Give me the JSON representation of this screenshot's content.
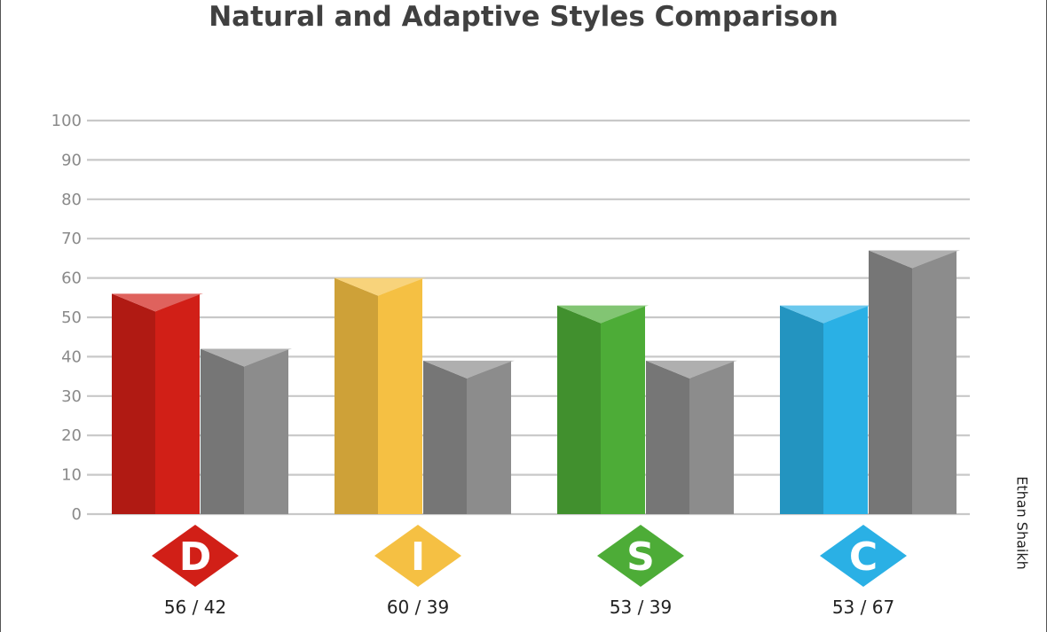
{
  "chart_data": {
    "type": "bar",
    "title": "Natural and Adaptive Styles Comparison",
    "categories": [
      "D",
      "I",
      "S",
      "C"
    ],
    "series": [
      {
        "values": [
          56,
          60,
          53,
          53
        ]
      },
      {
        "values": [
          42,
          39,
          39,
          67
        ]
      }
    ],
    "value_labels": [
      "56 / 42",
      "60 / 39",
      "53 / 39",
      "53 / 67"
    ],
    "ylim": [
      0,
      100
    ],
    "yticks": [
      0,
      10,
      20,
      30,
      40,
      50,
      60,
      70,
      80,
      90,
      100
    ],
    "grid": true,
    "colors": {
      "D": "#d11f17",
      "I": "#f5c043",
      "S": "#4dac37",
      "C": "#2ab0e5",
      "adaptive": "#8c8c8c"
    }
  },
  "side_label": "Ethan Shaikh"
}
